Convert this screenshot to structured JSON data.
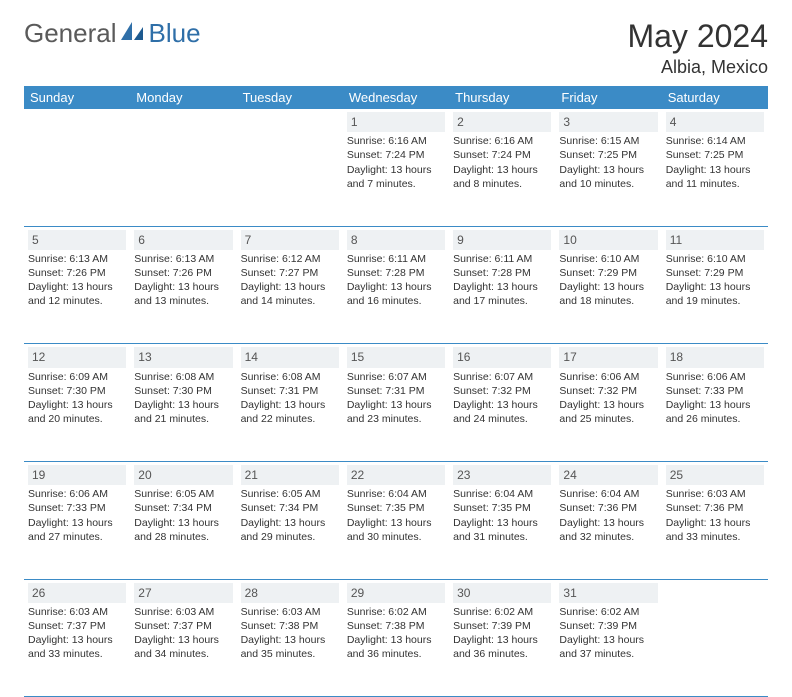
{
  "brand": {
    "name_part1": "General",
    "name_part2": "Blue"
  },
  "title": "May 2024",
  "location": "Albia, Mexico",
  "colors": {
    "header_bg": "#3b8bc6",
    "header_fg": "#ffffff",
    "daynum_bg": "#eef1f3",
    "rule": "#3b8bc6",
    "text": "#333333",
    "logo_gray": "#5a5a5a",
    "logo_blue": "#2f6fa8"
  },
  "day_names": [
    "Sunday",
    "Monday",
    "Tuesday",
    "Wednesday",
    "Thursday",
    "Friday",
    "Saturday"
  ],
  "weeks": [
    [
      {
        "n": "",
        "lines": []
      },
      {
        "n": "",
        "lines": []
      },
      {
        "n": "",
        "lines": []
      },
      {
        "n": "1",
        "lines": [
          "Sunrise: 6:16 AM",
          "Sunset: 7:24 PM",
          "Daylight: 13 hours",
          "and 7 minutes."
        ]
      },
      {
        "n": "2",
        "lines": [
          "Sunrise: 6:16 AM",
          "Sunset: 7:24 PM",
          "Daylight: 13 hours",
          "and 8 minutes."
        ]
      },
      {
        "n": "3",
        "lines": [
          "Sunrise: 6:15 AM",
          "Sunset: 7:25 PM",
          "Daylight: 13 hours",
          "and 10 minutes."
        ]
      },
      {
        "n": "4",
        "lines": [
          "Sunrise: 6:14 AM",
          "Sunset: 7:25 PM",
          "Daylight: 13 hours",
          "and 11 minutes."
        ]
      }
    ],
    [
      {
        "n": "5",
        "lines": [
          "Sunrise: 6:13 AM",
          "Sunset: 7:26 PM",
          "Daylight: 13 hours",
          "and 12 minutes."
        ]
      },
      {
        "n": "6",
        "lines": [
          "Sunrise: 6:13 AM",
          "Sunset: 7:26 PM",
          "Daylight: 13 hours",
          "and 13 minutes."
        ]
      },
      {
        "n": "7",
        "lines": [
          "Sunrise: 6:12 AM",
          "Sunset: 7:27 PM",
          "Daylight: 13 hours",
          "and 14 minutes."
        ]
      },
      {
        "n": "8",
        "lines": [
          "Sunrise: 6:11 AM",
          "Sunset: 7:28 PM",
          "Daylight: 13 hours",
          "and 16 minutes."
        ]
      },
      {
        "n": "9",
        "lines": [
          "Sunrise: 6:11 AM",
          "Sunset: 7:28 PM",
          "Daylight: 13 hours",
          "and 17 minutes."
        ]
      },
      {
        "n": "10",
        "lines": [
          "Sunrise: 6:10 AM",
          "Sunset: 7:29 PM",
          "Daylight: 13 hours",
          "and 18 minutes."
        ]
      },
      {
        "n": "11",
        "lines": [
          "Sunrise: 6:10 AM",
          "Sunset: 7:29 PM",
          "Daylight: 13 hours",
          "and 19 minutes."
        ]
      }
    ],
    [
      {
        "n": "12",
        "lines": [
          "Sunrise: 6:09 AM",
          "Sunset: 7:30 PM",
          "Daylight: 13 hours",
          "and 20 minutes."
        ]
      },
      {
        "n": "13",
        "lines": [
          "Sunrise: 6:08 AM",
          "Sunset: 7:30 PM",
          "Daylight: 13 hours",
          "and 21 minutes."
        ]
      },
      {
        "n": "14",
        "lines": [
          "Sunrise: 6:08 AM",
          "Sunset: 7:31 PM",
          "Daylight: 13 hours",
          "and 22 minutes."
        ]
      },
      {
        "n": "15",
        "lines": [
          "Sunrise: 6:07 AM",
          "Sunset: 7:31 PM",
          "Daylight: 13 hours",
          "and 23 minutes."
        ]
      },
      {
        "n": "16",
        "lines": [
          "Sunrise: 6:07 AM",
          "Sunset: 7:32 PM",
          "Daylight: 13 hours",
          "and 24 minutes."
        ]
      },
      {
        "n": "17",
        "lines": [
          "Sunrise: 6:06 AM",
          "Sunset: 7:32 PM",
          "Daylight: 13 hours",
          "and 25 minutes."
        ]
      },
      {
        "n": "18",
        "lines": [
          "Sunrise: 6:06 AM",
          "Sunset: 7:33 PM",
          "Daylight: 13 hours",
          "and 26 minutes."
        ]
      }
    ],
    [
      {
        "n": "19",
        "lines": [
          "Sunrise: 6:06 AM",
          "Sunset: 7:33 PM",
          "Daylight: 13 hours",
          "and 27 minutes."
        ]
      },
      {
        "n": "20",
        "lines": [
          "Sunrise: 6:05 AM",
          "Sunset: 7:34 PM",
          "Daylight: 13 hours",
          "and 28 minutes."
        ]
      },
      {
        "n": "21",
        "lines": [
          "Sunrise: 6:05 AM",
          "Sunset: 7:34 PM",
          "Daylight: 13 hours",
          "and 29 minutes."
        ]
      },
      {
        "n": "22",
        "lines": [
          "Sunrise: 6:04 AM",
          "Sunset: 7:35 PM",
          "Daylight: 13 hours",
          "and 30 minutes."
        ]
      },
      {
        "n": "23",
        "lines": [
          "Sunrise: 6:04 AM",
          "Sunset: 7:35 PM",
          "Daylight: 13 hours",
          "and 31 minutes."
        ]
      },
      {
        "n": "24",
        "lines": [
          "Sunrise: 6:04 AM",
          "Sunset: 7:36 PM",
          "Daylight: 13 hours",
          "and 32 minutes."
        ]
      },
      {
        "n": "25",
        "lines": [
          "Sunrise: 6:03 AM",
          "Sunset: 7:36 PM",
          "Daylight: 13 hours",
          "and 33 minutes."
        ]
      }
    ],
    [
      {
        "n": "26",
        "lines": [
          "Sunrise: 6:03 AM",
          "Sunset: 7:37 PM",
          "Daylight: 13 hours",
          "and 33 minutes."
        ]
      },
      {
        "n": "27",
        "lines": [
          "Sunrise: 6:03 AM",
          "Sunset: 7:37 PM",
          "Daylight: 13 hours",
          "and 34 minutes."
        ]
      },
      {
        "n": "28",
        "lines": [
          "Sunrise: 6:03 AM",
          "Sunset: 7:38 PM",
          "Daylight: 13 hours",
          "and 35 minutes."
        ]
      },
      {
        "n": "29",
        "lines": [
          "Sunrise: 6:02 AM",
          "Sunset: 7:38 PM",
          "Daylight: 13 hours",
          "and 36 minutes."
        ]
      },
      {
        "n": "30",
        "lines": [
          "Sunrise: 6:02 AM",
          "Sunset: 7:39 PM",
          "Daylight: 13 hours",
          "and 36 minutes."
        ]
      },
      {
        "n": "31",
        "lines": [
          "Sunrise: 6:02 AM",
          "Sunset: 7:39 PM",
          "Daylight: 13 hours",
          "and 37 minutes."
        ]
      },
      {
        "n": "",
        "lines": []
      }
    ]
  ]
}
